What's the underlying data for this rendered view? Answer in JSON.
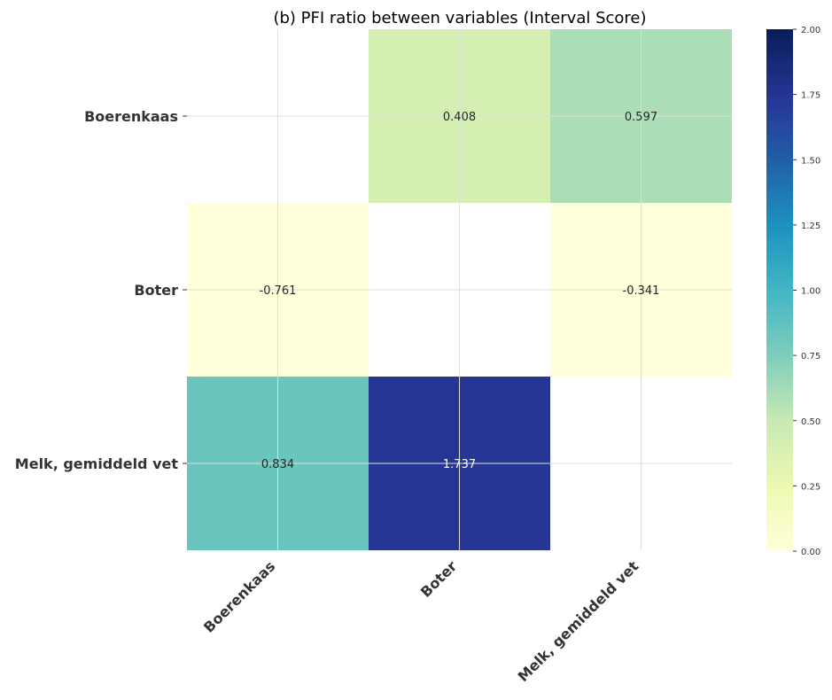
{
  "chart_data": {
    "type": "heatmap",
    "title": "(b) PFI ratio between variables (Interval Score)",
    "rows": [
      "Boerenkaas",
      "Boter",
      "Melk, gemiddeld vet"
    ],
    "columns": [
      "Boerenkaas",
      "Boter",
      "Melk, gemiddeld vet"
    ],
    "values": [
      [
        null,
        0.408,
        0.597
      ],
      [
        -0.761,
        null,
        -0.341
      ],
      [
        0.834,
        1.737,
        null
      ]
    ],
    "value_labels": [
      [
        null,
        "0.408",
        "0.597"
      ],
      [
        "-0.761",
        null,
        "-0.341"
      ],
      [
        "0.834",
        "1.737",
        null
      ]
    ],
    "colorscale": "YlGnBu",
    "vmin": 0,
    "vmax": 2,
    "colorbar_ticks": [
      "0.00",
      "0.25",
      "0.50",
      "0.75",
      "1.00",
      "1.25",
      "1.50",
      "1.75",
      "2.00"
    ],
    "grid": true
  }
}
